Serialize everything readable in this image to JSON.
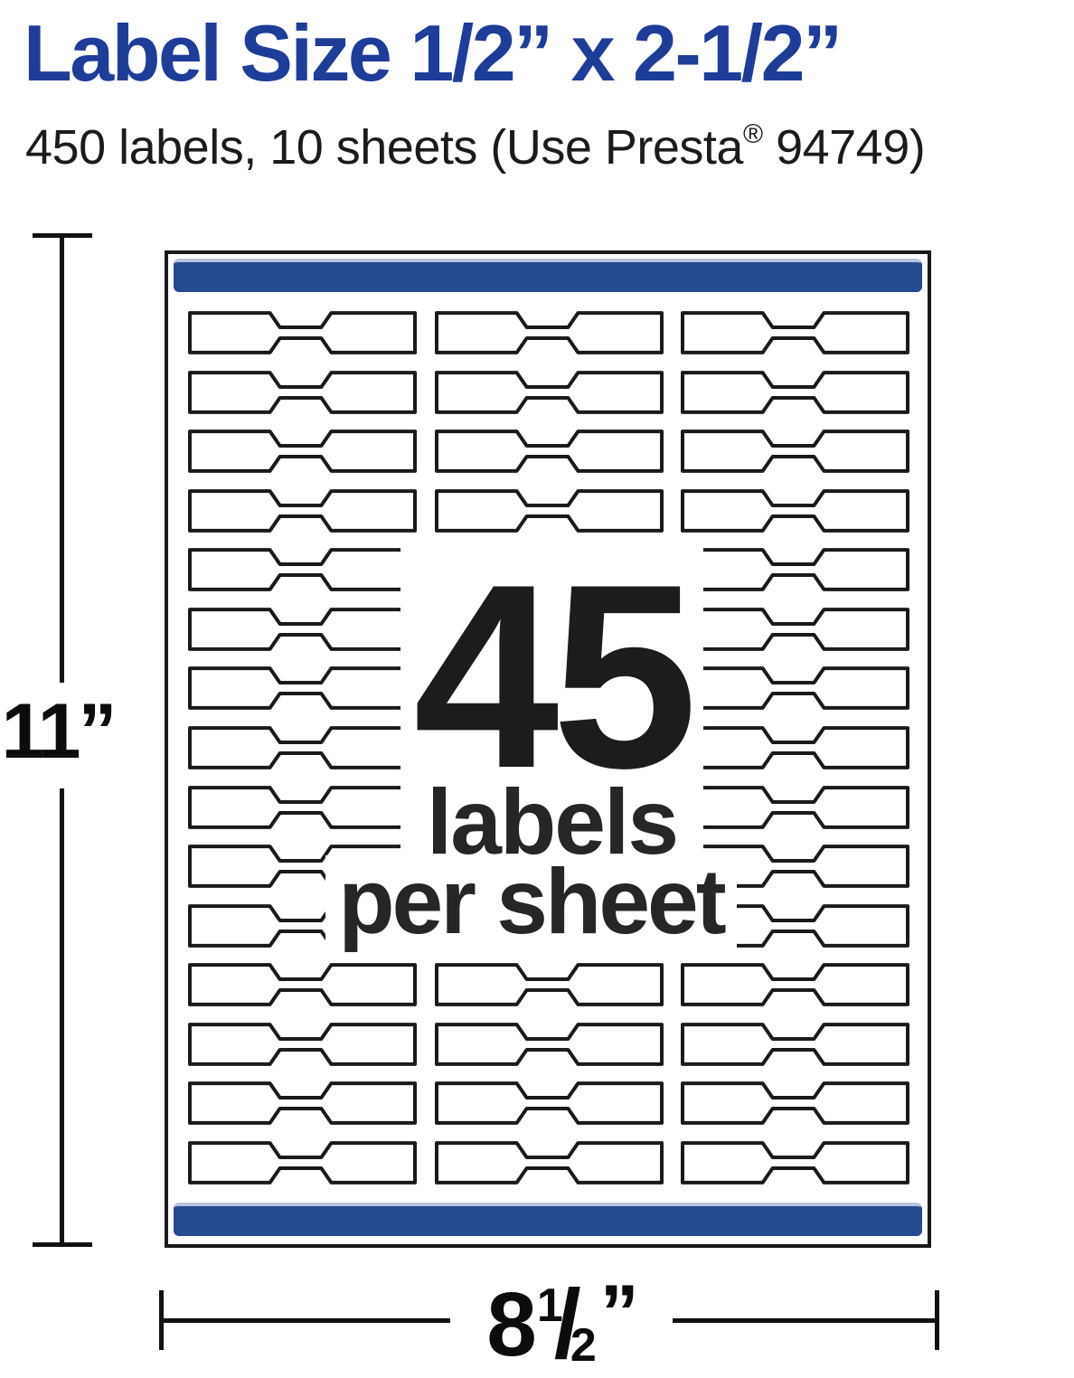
{
  "colors": {
    "title_blue": "#1e3d99",
    "bar_blue": "#254a8f",
    "bar_highlight": "#b9c5de",
    "ink": "#1a1a1a"
  },
  "header": {
    "title": "Label Size 1/2” x 2-1/2”",
    "subtitle_before_reg": "450 labels, 10 sheets (Use Presta",
    "registered_mark": "®",
    "subtitle_after_reg": " 94749)"
  },
  "sheet": {
    "grid_rows": 15,
    "grid_columns": 3,
    "overlay": {
      "count": "45",
      "line1": "labels",
      "line2": "per sheet"
    }
  },
  "dimensions": {
    "height_label": "11”",
    "width_whole": "8",
    "width_frac_numerator": "1",
    "width_frac_slash": "/",
    "width_frac_denominator": "2",
    "width_unit_mark": "”"
  }
}
